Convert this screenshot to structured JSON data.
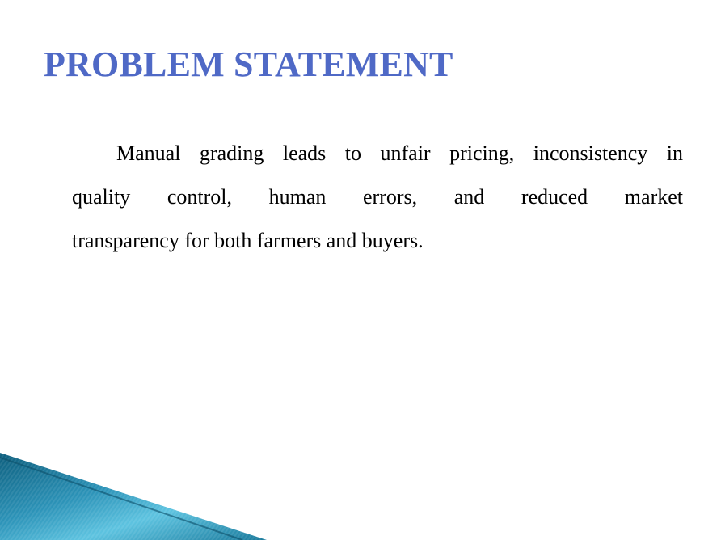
{
  "slide": {
    "title": "PROBLEM STATEMENT",
    "title_color": "#4F69C6",
    "body_lines": [
      "Manual grading leads to unfair pricing, inconsistency in",
      "quality control, human errors, and reduced market",
      "transparency for both farmers and buyers."
    ]
  },
  "colors": {
    "text": "#000000",
    "accent_dark": "#0E5F7E",
    "accent_light": "#5DC3E0"
  }
}
